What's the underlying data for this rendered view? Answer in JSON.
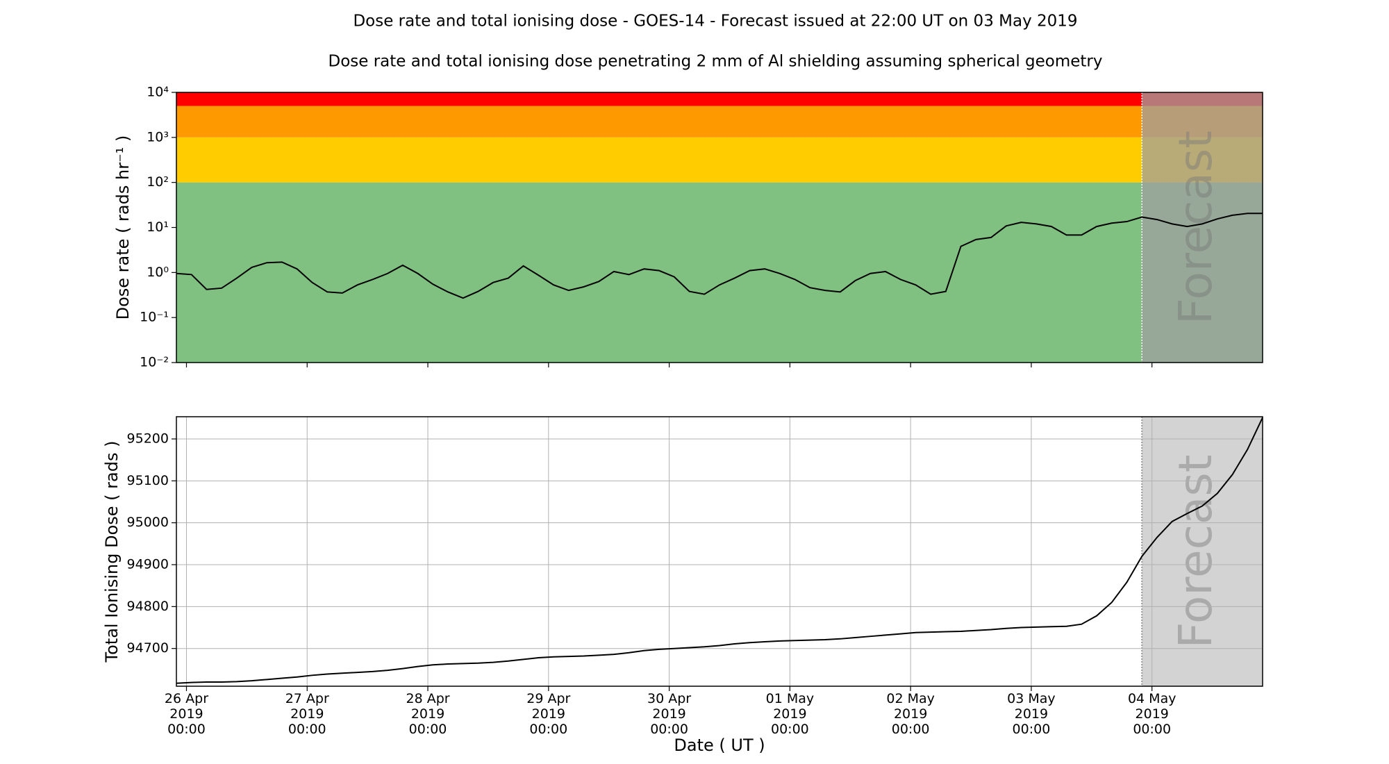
{
  "title": "Dose rate and total ionising dose - GOES-14 - Forecast issued at 22:00 UT on 03 May 2019",
  "subtitle": "Dose rate and total ionising dose penetrating 2 mm of Al shielding assuming spherical geometry",
  "xlabel": "Date ( UT )",
  "chart_data": [
    {
      "type": "line",
      "ylabel": "Dose rate ( rads hr⁻¹ )",
      "log": true,
      "color": "#000000",
      "xlim": [
        "2019-04-25T22:00",
        "2019-05-04T22:00"
      ],
      "ylim": [
        0.01,
        10000
      ],
      "yticks": [
        {
          "value": 0.01,
          "label": "10⁻²"
        },
        {
          "value": 0.1,
          "label": "10⁻¹"
        },
        {
          "value": 1,
          "label": "10⁰"
        },
        {
          "value": 10,
          "label": "10¹"
        },
        {
          "value": 100,
          "label": "10²"
        },
        {
          "value": 1000,
          "label": "10³"
        },
        {
          "value": 10000,
          "label": "10⁴"
        }
      ],
      "bands": [
        {
          "from": 0.01,
          "to": 100,
          "color": "#80c080"
        },
        {
          "from": 100,
          "to": 1000,
          "color": "#ffcc00"
        },
        {
          "from": 1000,
          "to": 5000,
          "color": "#ff9900"
        },
        {
          "from": 5000,
          "to": 10000,
          "color": "#ff0000"
        }
      ],
      "forecast_start": "2019-05-03T22:00",
      "forecast_label": "Forecast",
      "forecast_color": "#a0a0a0",
      "x": [
        "2019-04-25T22:00",
        "2019-04-26T01:00",
        "2019-04-26T04:00",
        "2019-04-26T07:00",
        "2019-04-26T10:00",
        "2019-04-26T13:00",
        "2019-04-26T16:00",
        "2019-04-26T19:00",
        "2019-04-26T22:00",
        "2019-04-27T01:00",
        "2019-04-27T04:00",
        "2019-04-27T07:00",
        "2019-04-27T10:00",
        "2019-04-27T13:00",
        "2019-04-27T16:00",
        "2019-04-27T19:00",
        "2019-04-27T22:00",
        "2019-04-28T01:00",
        "2019-04-28T04:00",
        "2019-04-28T07:00",
        "2019-04-28T10:00",
        "2019-04-28T13:00",
        "2019-04-28T16:00",
        "2019-04-28T19:00",
        "2019-04-28T22:00",
        "2019-04-29T01:00",
        "2019-04-29T04:00",
        "2019-04-29T07:00",
        "2019-04-29T10:00",
        "2019-04-29T13:00",
        "2019-04-29T16:00",
        "2019-04-29T19:00",
        "2019-04-29T22:00",
        "2019-04-30T01:00",
        "2019-04-30T04:00",
        "2019-04-30T07:00",
        "2019-04-30T10:00",
        "2019-04-30T13:00",
        "2019-04-30T16:00",
        "2019-04-30T19:00",
        "2019-04-30T22:00",
        "2019-05-01T01:00",
        "2019-05-01T04:00",
        "2019-05-01T07:00",
        "2019-05-01T10:00",
        "2019-05-01T13:00",
        "2019-05-01T16:00",
        "2019-05-01T19:00",
        "2019-05-01T22:00",
        "2019-05-02T01:00",
        "2019-05-02T04:00",
        "2019-05-02T07:00",
        "2019-05-02T10:00",
        "2019-05-02T13:00",
        "2019-05-02T16:00",
        "2019-05-02T19:00",
        "2019-05-02T22:00",
        "2019-05-03T01:00",
        "2019-05-03T04:00",
        "2019-05-03T07:00",
        "2019-05-03T10:00",
        "2019-05-03T13:00",
        "2019-05-03T16:00",
        "2019-05-03T19:00",
        "2019-05-03T22:00",
        "2019-05-04T01:00",
        "2019-05-04T04:00",
        "2019-05-04T07:00",
        "2019-05-04T10:00",
        "2019-05-04T13:00",
        "2019-05-04T16:00",
        "2019-05-04T19:00",
        "2019-05-04T22:00"
      ],
      "values": [
        0.95,
        0.9,
        0.42,
        0.45,
        0.75,
        1.3,
        1.65,
        1.7,
        1.2,
        0.6,
        0.37,
        0.35,
        0.53,
        0.7,
        0.95,
        1.45,
        0.95,
        0.55,
        0.37,
        0.27,
        0.38,
        0.6,
        0.75,
        1.4,
        0.87,
        0.53,
        0.4,
        0.48,
        0.63,
        1.05,
        0.9,
        1.2,
        1.1,
        0.8,
        0.38,
        0.33,
        0.53,
        0.75,
        1.1,
        1.2,
        0.95,
        0.7,
        0.46,
        0.4,
        0.37,
        0.66,
        0.95,
        1.05,
        0.7,
        0.53,
        0.33,
        0.38,
        3.8,
        5.4,
        6,
        10.8,
        13,
        12,
        10.5,
        6.8,
        6.8,
        10.5,
        12.5,
        13.5,
        17,
        15,
        12,
        10.5,
        12,
        15.5,
        18.7,
        20.5,
        20.5
      ]
    },
    {
      "type": "line",
      "ylabel": "Total Ionising Dose ( rads )",
      "log": false,
      "grid": true,
      "color": "#000000",
      "xlim": [
        "2019-04-25T22:00",
        "2019-05-04T22:00"
      ],
      "ylim": [
        94610,
        95253
      ],
      "yticks": [
        94700,
        94800,
        94900,
        95000,
        95100,
        95200
      ],
      "xticks": [
        {
          "value": "2019-04-26T00:00",
          "label": [
            "26 Apr",
            "2019",
            "00:00"
          ]
        },
        {
          "value": "2019-04-27T00:00",
          "label": [
            "27 Apr",
            "2019",
            "00:00"
          ]
        },
        {
          "value": "2019-04-28T00:00",
          "label": [
            "28 Apr",
            "2019",
            "00:00"
          ]
        },
        {
          "value": "2019-04-29T00:00",
          "label": [
            "29 Apr",
            "2019",
            "00:00"
          ]
        },
        {
          "value": "2019-04-30T00:00",
          "label": [
            "30 Apr",
            "2019",
            "00:00"
          ]
        },
        {
          "value": "2019-05-01T00:00",
          "label": [
            "01 May",
            "2019",
            "00:00"
          ]
        },
        {
          "value": "2019-05-02T00:00",
          "label": [
            "02 May",
            "2019",
            "00:00"
          ]
        },
        {
          "value": "2019-05-03T00:00",
          "label": [
            "03 May",
            "2019",
            "00:00"
          ]
        },
        {
          "value": "2019-05-04T00:00",
          "label": [
            "04 May",
            "2019",
            "00:00"
          ]
        }
      ],
      "forecast_start": "2019-05-03T22:00",
      "forecast_label": "Forecast",
      "forecast_color": "#d3d3d3",
      "x": [
        "2019-04-25T22:00",
        "2019-04-26T01:00",
        "2019-04-26T04:00",
        "2019-04-26T07:00",
        "2019-04-26T10:00",
        "2019-04-26T13:00",
        "2019-04-26T16:00",
        "2019-04-26T19:00",
        "2019-04-26T22:00",
        "2019-04-27T01:00",
        "2019-04-27T04:00",
        "2019-04-27T07:00",
        "2019-04-27T10:00",
        "2019-04-27T13:00",
        "2019-04-27T16:00",
        "2019-04-27T19:00",
        "2019-04-27T22:00",
        "2019-04-28T01:00",
        "2019-04-28T04:00",
        "2019-04-28T07:00",
        "2019-04-28T10:00",
        "2019-04-28T13:00",
        "2019-04-28T16:00",
        "2019-04-28T19:00",
        "2019-04-28T22:00",
        "2019-04-29T01:00",
        "2019-04-29T04:00",
        "2019-04-29T07:00",
        "2019-04-29T10:00",
        "2019-04-29T13:00",
        "2019-04-29T16:00",
        "2019-04-29T19:00",
        "2019-04-29T22:00",
        "2019-04-30T01:00",
        "2019-04-30T04:00",
        "2019-04-30T07:00",
        "2019-04-30T10:00",
        "2019-04-30T13:00",
        "2019-04-30T16:00",
        "2019-04-30T19:00",
        "2019-04-30T22:00",
        "2019-05-01T01:00",
        "2019-05-01T04:00",
        "2019-05-01T07:00",
        "2019-05-01T10:00",
        "2019-05-01T13:00",
        "2019-05-01T16:00",
        "2019-05-01T19:00",
        "2019-05-01T22:00",
        "2019-05-02T01:00",
        "2019-05-02T04:00",
        "2019-05-02T07:00",
        "2019-05-02T10:00",
        "2019-05-02T13:00",
        "2019-05-02T16:00",
        "2019-05-02T19:00",
        "2019-05-02T22:00",
        "2019-05-03T01:00",
        "2019-05-03T04:00",
        "2019-05-03T07:00",
        "2019-05-03T10:00",
        "2019-05-03T13:00",
        "2019-05-03T16:00",
        "2019-05-03T19:00",
        "2019-05-03T22:00",
        "2019-05-04T01:00",
        "2019-05-04T04:00",
        "2019-05-04T07:00",
        "2019-05-04T10:00",
        "2019-05-04T13:00",
        "2019-05-04T16:00",
        "2019-05-04T19:00",
        "2019-05-04T22:00"
      ],
      "values": [
        94617,
        94619,
        94620,
        94620,
        94621,
        94623,
        94626,
        94629,
        94632,
        94636,
        94639,
        94641,
        94643,
        94645,
        94648,
        94652,
        94657,
        94661,
        94663,
        94664,
        94665,
        94667,
        94670,
        94674,
        94678,
        94680,
        94681,
        94682,
        94684,
        94686,
        94690,
        94695,
        94698,
        94700,
        94702,
        94704,
        94707,
        94711,
        94714,
        94716,
        94718,
        94719,
        94720,
        94721,
        94723,
        94726,
        94729,
        94732,
        94735,
        94738,
        94739,
        94740,
        94741,
        94743,
        94745,
        94748,
        94750,
        94751,
        94752,
        94753,
        94758,
        94778,
        94810,
        94858,
        94920,
        94965,
        95003,
        95022,
        95040,
        95070,
        95115,
        95175,
        95251
      ]
    }
  ]
}
